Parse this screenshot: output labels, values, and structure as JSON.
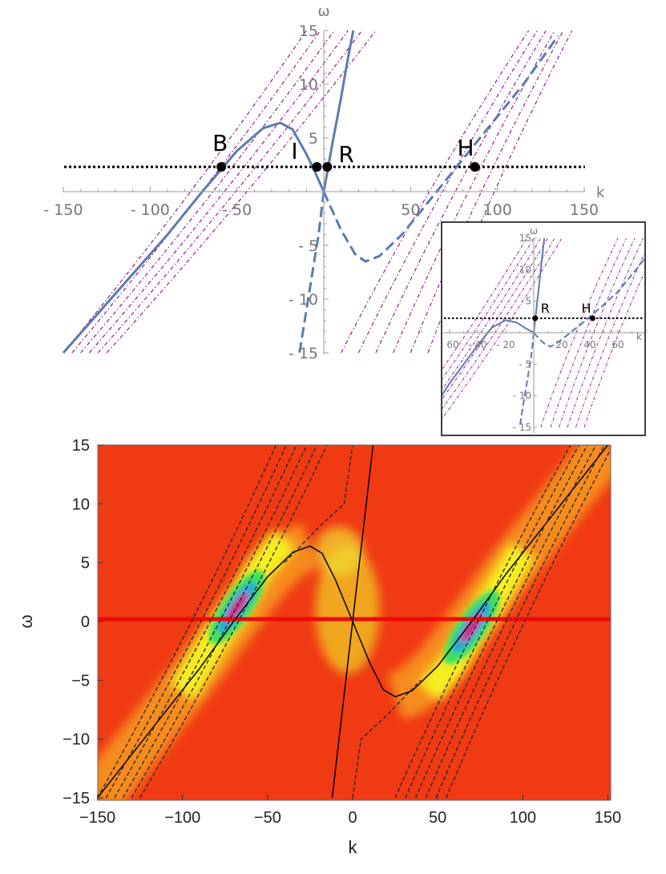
{
  "chart_data": [
    {
      "type": "line",
      "panel": "dispersion-top",
      "xlabel": "k",
      "ylabel": "ω",
      "xlim": [
        -150,
        150
      ],
      "ylim": [
        -15,
        15
      ],
      "x_ticks": [
        "- 150",
        "- 100",
        "- 50",
        "50",
        "100",
        "150"
      ],
      "y_ticks": [
        "15",
        "10",
        "5",
        "- 5",
        "- 10",
        "- 15"
      ],
      "x_tick_values": [
        -150,
        -100,
        -50,
        50,
        100,
        150
      ],
      "y_tick_values": [
        15,
        10,
        5,
        -5,
        -10,
        -15
      ],
      "horizontal_line_omega": 2.3,
      "points": [
        {
          "label": "B",
          "k": -59,
          "omega": 2.3
        },
        {
          "label": "I",
          "k": -4,
          "omega": 2.3
        },
        {
          "label": "R",
          "k": 2,
          "omega": 2.3
        },
        {
          "label": "H",
          "k": 87,
          "omega": 2.3
        }
      ],
      "series": [
        {
          "style": "solid",
          "points": [
            [
              -150,
              -15
            ],
            [
              -120,
              -9.5
            ],
            [
              -90,
              -4
            ],
            [
              -70,
              0
            ],
            [
              -50,
              3.8
            ],
            [
              -35,
              5.9
            ],
            [
              -25,
              6.4
            ],
            [
              -18,
              5.8
            ],
            [
              -10,
              3.5
            ],
            [
              -5,
              1.8
            ],
            [
              0,
              0
            ]
          ]
        },
        {
          "style": "solid",
          "points": [
            [
              0,
              0
            ],
            [
              5,
              4.5
            ],
            [
              10,
              8.8
            ],
            [
              14,
              12.5
            ],
            [
              17,
              15
            ]
          ]
        },
        {
          "style": "dashed",
          "points": [
            [
              0,
              0
            ],
            [
              5,
              -1.8
            ],
            [
              10,
              -3.6
            ],
            [
              18,
              -5.8
            ],
            [
              24,
              -6.5
            ],
            [
              32,
              -6
            ],
            [
              45,
              -4
            ],
            [
              60,
              -1
            ],
            [
              75,
              2
            ],
            [
              95,
              6
            ],
            [
              115,
              10
            ],
            [
              135,
              14.5
            ]
          ]
        },
        {
          "style": "dashed",
          "points": [
            [
              0,
              0
            ],
            [
              -3,
              -4
            ],
            [
              -7,
              -8
            ],
            [
              -11,
              -12
            ],
            [
              -14,
              -15
            ]
          ]
        }
      ],
      "families": [
        {
          "side": "left",
          "k_at_bottom": [
            -150,
            -145,
            -140,
            -135,
            -130,
            -125
          ],
          "k_at_top": [
            -10,
            -2,
            6,
            14,
            22,
            30
          ]
        },
        {
          "side": "right",
          "k_at_bottom": [
            10,
            20,
            30,
            40,
            50,
            60
          ],
          "k_at_top": [
            118,
            123,
            128,
            133,
            138,
            143
          ]
        }
      ]
    },
    {
      "type": "line",
      "panel": "inset",
      "xlabel": "k",
      "ylabel": "ω",
      "xlim": [
        -80,
        80
      ],
      "ylim": [
        -15,
        15
      ],
      "x_ticks": [
        "- 60",
        "- 40",
        "- 20",
        "20",
        "40",
        "60"
      ],
      "y_ticks": [
        "15",
        "10",
        "5",
        "- 5",
        "- 10",
        "- 15"
      ],
      "x_tick_values": [
        -60,
        -40,
        -20,
        20,
        40,
        60
      ],
      "y_tick_values": [
        15,
        10,
        5,
        -5,
        -10,
        -15
      ],
      "horizontal_line_omega": 2.3,
      "points": [
        {
          "label": "R",
          "k": 1,
          "omega": 2.3
        },
        {
          "label": "H",
          "k": 42,
          "omega": 2.3
        }
      ]
    },
    {
      "type": "heatmap",
      "panel": "spectrum-bottom",
      "xlabel": "k",
      "ylabel": "ω",
      "xlim": [
        -150,
        150
      ],
      "ylim": [
        -15,
        15
      ],
      "x_ticks": [
        "−150",
        "−100",
        "−50",
        "0",
        "50",
        "100",
        "150"
      ],
      "y_ticks": [
        "15",
        "10",
        "5",
        "0",
        "−5",
        "−10",
        "−15"
      ],
      "x_tick_values": [
        -150,
        -100,
        -50,
        0,
        50,
        100,
        150
      ],
      "y_tick_values": [
        15,
        10,
        5,
        0,
        -5,
        -10,
        -15
      ],
      "horizontal_line_omega": 0.2,
      "hot_spots": [
        {
          "k": -68,
          "omega": 1.2
        },
        {
          "k": 70,
          "omega": -0.5
        }
      ]
    }
  ],
  "colors": {
    "curve": "#5a7bb0",
    "family": "#8b0a86",
    "hline": "#000000",
    "heat_bg": "#f03a14",
    "heat_line": "#ee0a0a"
  }
}
